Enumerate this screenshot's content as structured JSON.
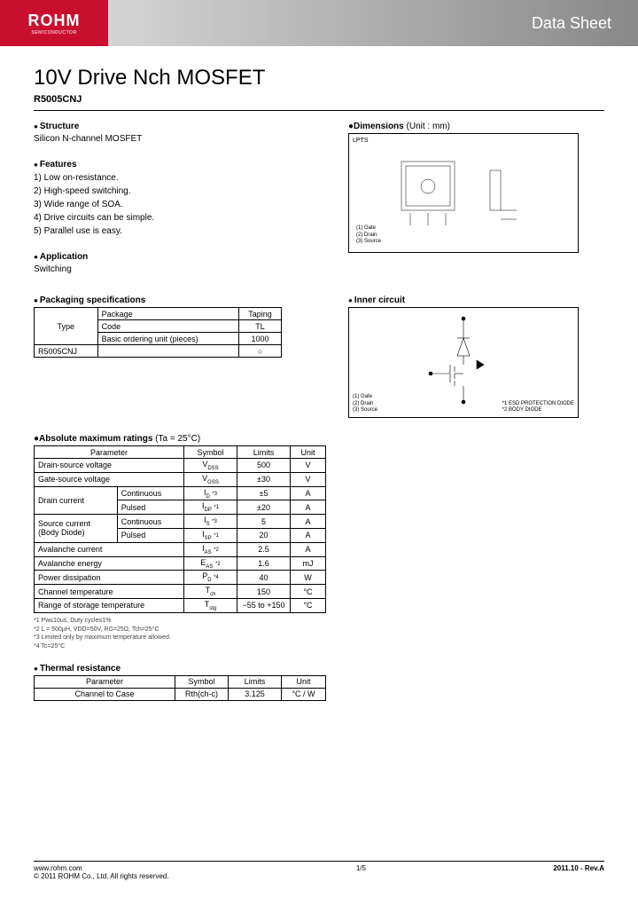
{
  "header": {
    "logo_main": "ROHM",
    "logo_sub": "SEMICONDUCTOR",
    "datasheet_label": "Data Sheet"
  },
  "title": "10V Drive Nch MOSFET",
  "part_number": "R5005CNJ",
  "structure": {
    "heading": "Structure",
    "text": "Silicon N-channel MOSFET"
  },
  "features": {
    "heading": "Features",
    "items": [
      "1) Low on-resistance.",
      "2) High-speed switching.",
      "3) Wide range of SOA.",
      "4) Drive circuits can be simple.",
      "5) Parallel use is easy."
    ]
  },
  "application": {
    "heading": "Application",
    "text": "Switching"
  },
  "dimensions": {
    "heading": "Dimensions",
    "units": " (Unit : mm)",
    "package_label": "LPTS",
    "legend": [
      "(1) Gate",
      "(2) Drain",
      "(3) Source"
    ]
  },
  "packaging": {
    "heading": "Packaging specifications",
    "type_label": "Type",
    "package_label": "Package",
    "taping_label": "Taping",
    "code_label": "Code",
    "code_value": "TL",
    "unit_label": "Basic ordering unit (pieces)",
    "unit_value": "1000",
    "part": "R5005CNJ",
    "mark": "○"
  },
  "inner_circuit": {
    "heading": "Inner circuit",
    "legend": [
      "(1) Gate",
      "(2) Drain",
      "(3) Source"
    ],
    "notes": [
      "*1 ESD PROTECTION DIODE",
      "*2 BODY DIODE"
    ]
  },
  "abs_max": {
    "heading": "Absolute maximum ratings",
    "condition": " (Ta = 25°C)",
    "headers": [
      "Parameter",
      "Symbol",
      "Limits",
      "Unit"
    ],
    "rows": [
      {
        "param": "Drain-source voltage",
        "sub": "",
        "symbol": "V",
        "sym_sub": "DSS",
        "note": "",
        "limits": "500",
        "unit": "V"
      },
      {
        "param": "Gate-source voltage",
        "sub": "",
        "symbol": "V",
        "sym_sub": "GSS",
        "note": "",
        "limits": "±30",
        "unit": "V"
      },
      {
        "param": "Drain current",
        "sub": "Continuous",
        "symbol": "I",
        "sym_sub": "D",
        "note": "*3",
        "limits": "±5",
        "unit": "A"
      },
      {
        "param": "",
        "sub": "Pulsed",
        "symbol": "I",
        "sym_sub": "DP",
        "note": "*1",
        "limits": "±20",
        "unit": "A"
      },
      {
        "param": "Source current",
        "sub": "Continuous",
        "symbol": "I",
        "sym_sub": "S",
        "note": "*3",
        "limits": "5",
        "unit": "A"
      },
      {
        "param": "(Body Diode)",
        "sub": "Pulsed",
        "symbol": "I",
        "sym_sub": "SP",
        "note": "*1",
        "limits": "20",
        "unit": "A"
      },
      {
        "param": "Avalanche current",
        "sub": "",
        "symbol": "I",
        "sym_sub": "AS",
        "note": "*2",
        "limits": "2.5",
        "unit": "A"
      },
      {
        "param": "Avalanche energy",
        "sub": "",
        "symbol": "E",
        "sym_sub": "AS",
        "note": "*2",
        "limits": "1.6",
        "unit": "mJ"
      },
      {
        "param": "Power dissipation",
        "sub": "",
        "symbol": "P",
        "sym_sub": "D",
        "note": "*4",
        "limits": "40",
        "unit": "W"
      },
      {
        "param": "Channel temperature",
        "sub": "",
        "symbol": "T",
        "sym_sub": "ch",
        "note": "",
        "limits": "150",
        "unit": "°C"
      },
      {
        "param": "Range of storage temperature",
        "sub": "",
        "symbol": "T",
        "sym_sub": "stg",
        "note": "",
        "limits": "−55 to +150",
        "unit": "°C"
      }
    ],
    "footnotes": [
      "*1 Pw≤10us, Duty cycle≤1%",
      "*2 L = 500µH, VDD=50V, RG=25Ω, Tch=25°C",
      "*3 Limited only by maximum temperature allowed.",
      "*4 Tc=25°C"
    ]
  },
  "thermal": {
    "heading": "Thermal resistance",
    "headers": [
      "Parameter",
      "Symbol",
      "Limits",
      "Unit"
    ],
    "row": {
      "param": "Channel to Case",
      "symbol": "R",
      "sym_sub": "th(ch-c)",
      "limits": "3.125",
      "unit": "°C / W"
    }
  },
  "footer": {
    "url": "www.rohm.com",
    "copyright": "© 2011  ROHM Co., Ltd. All rights reserved.",
    "page": "1/5",
    "rev": "2011.10 -  Rev.A"
  }
}
